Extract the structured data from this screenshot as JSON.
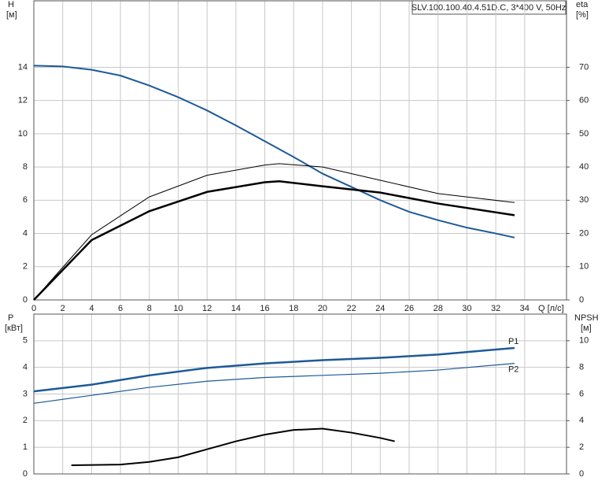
{
  "chart_data": [
    {
      "type": "line",
      "title": "SLV.100.100.40.4.51D.C, 3*400 V, 50Hz",
      "y_label": "H",
      "y_unit": "[м]",
      "y2_label": "eta",
      "y2_unit": "[%]",
      "x_label": "Q [л/с]",
      "xlim": [
        0,
        36.9
      ],
      "xticks": [
        0,
        2,
        4,
        6,
        8,
        10,
        12,
        14,
        16,
        18,
        20,
        22,
        24,
        26,
        28,
        30,
        32,
        34
      ],
      "ylim": [
        0,
        18
      ],
      "yticks": [
        0,
        2,
        4,
        6,
        8,
        10,
        12,
        14
      ],
      "y2lim": [
        0,
        90
      ],
      "y2ticks": [
        0,
        10,
        20,
        30,
        40,
        50,
        60,
        70
      ],
      "grid": true,
      "series": [
        {
          "color": "#1d5a99",
          "width": 2,
          "x": [
            0,
            2,
            4,
            6,
            8,
            10,
            12,
            14,
            16,
            18,
            20,
            22,
            24,
            26,
            28,
            30,
            32,
            33.3
          ],
          "values": [
            14.1,
            14.05,
            13.85,
            13.5,
            12.9,
            12.2,
            11.4,
            10.5,
            9.55,
            8.6,
            7.6,
            6.8,
            6.0,
            5.3,
            4.8,
            4.35,
            4.0,
            3.75
          ]
        },
        {
          "color": "#000000",
          "width": 1,
          "axis": "y2",
          "x": [
            0,
            4,
            8,
            12,
            16,
            17,
            20,
            24,
            28,
            33.3
          ],
          "values": [
            0,
            19.6,
            31,
            37.5,
            40.6,
            41,
            40,
            36,
            32,
            29.3
          ]
        },
        {
          "color": "#000000",
          "width": 2.5,
          "axis": "y2",
          "x": [
            0,
            4,
            8,
            12,
            16,
            17,
            20,
            24,
            28,
            33.3
          ],
          "values": [
            0,
            18,
            26.7,
            32.5,
            35.4,
            35.7,
            34.2,
            32.3,
            29,
            25.5
          ]
        }
      ]
    },
    {
      "type": "line",
      "y_label": "P",
      "y_unit": "[кВт]",
      "y2_label": "NPSH",
      "y2_unit": "[м]",
      "ylim": [
        0,
        6
      ],
      "yticks": [
        0,
        1,
        2,
        3,
        4,
        5
      ],
      "y2lim": [
        0,
        12
      ],
      "y2ticks": [
        0,
        2,
        4,
        6,
        8,
        10
      ],
      "grid": true,
      "series": [
        {
          "name": "P1",
          "color": "#1d5a99",
          "width": 2.5,
          "x": [
            0,
            4,
            8,
            12,
            16,
            20,
            24,
            28,
            33.3
          ],
          "values": [
            3.1,
            3.35,
            3.7,
            3.98,
            4.15,
            4.27,
            4.36,
            4.48,
            4.73
          ]
        },
        {
          "name": "P2",
          "color": "#1d5a99",
          "width": 1.2,
          "x": [
            0,
            4,
            8,
            12,
            16,
            20,
            24,
            28,
            33.3
          ],
          "values": [
            2.65,
            2.95,
            3.25,
            3.48,
            3.62,
            3.7,
            3.78,
            3.9,
            4.15
          ]
        },
        {
          "color": "#000000",
          "width": 2,
          "axis": "y2",
          "x": [
            2.6,
            6,
            8,
            10,
            12,
            14,
            16,
            18,
            20,
            22,
            24,
            25
          ],
          "values": [
            0.65,
            0.7,
            0.9,
            1.25,
            1.85,
            2.45,
            2.95,
            3.3,
            3.4,
            3.1,
            2.7,
            2.45
          ]
        }
      ]
    }
  ]
}
